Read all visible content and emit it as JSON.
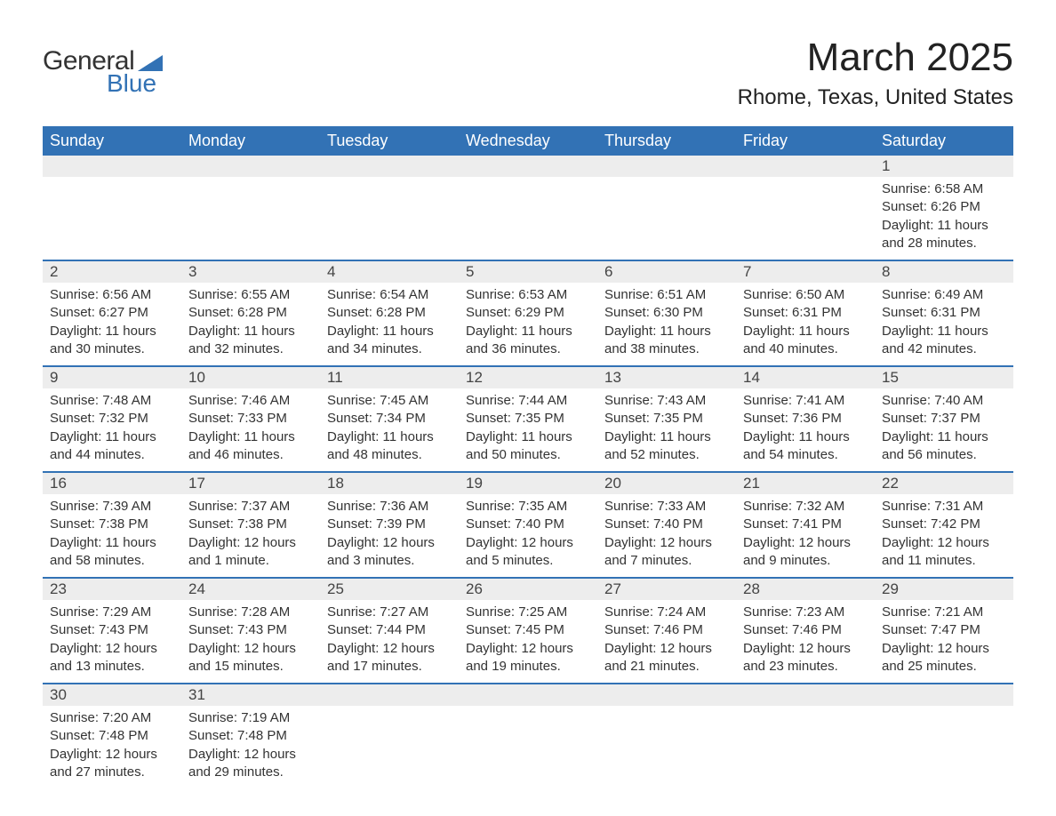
{
  "logo": {
    "text_general": "General",
    "text_blue": "Blue",
    "accent_color": "#3272b5"
  },
  "title": {
    "month": "March 2025",
    "location": "Rhome, Texas, United States"
  },
  "colors": {
    "header_bg": "#3272b5",
    "header_text": "#ffffff",
    "daynum_bg": "#ededed",
    "row_border": "#3272b5",
    "body_text": "#333333",
    "page_bg": "#ffffff"
  },
  "layout": {
    "columns": 7,
    "weeks": 6
  },
  "weekdays": [
    "Sunday",
    "Monday",
    "Tuesday",
    "Wednesday",
    "Thursday",
    "Friday",
    "Saturday"
  ],
  "days": [
    null,
    null,
    null,
    null,
    null,
    null,
    {
      "n": "1",
      "sunrise": "Sunrise: 6:58 AM",
      "sunset": "Sunset: 6:26 PM",
      "day1": "Daylight: 11 hours",
      "day2": "and 28 minutes."
    },
    {
      "n": "2",
      "sunrise": "Sunrise: 6:56 AM",
      "sunset": "Sunset: 6:27 PM",
      "day1": "Daylight: 11 hours",
      "day2": "and 30 minutes."
    },
    {
      "n": "3",
      "sunrise": "Sunrise: 6:55 AM",
      "sunset": "Sunset: 6:28 PM",
      "day1": "Daylight: 11 hours",
      "day2": "and 32 minutes."
    },
    {
      "n": "4",
      "sunrise": "Sunrise: 6:54 AM",
      "sunset": "Sunset: 6:28 PM",
      "day1": "Daylight: 11 hours",
      "day2": "and 34 minutes."
    },
    {
      "n": "5",
      "sunrise": "Sunrise: 6:53 AM",
      "sunset": "Sunset: 6:29 PM",
      "day1": "Daylight: 11 hours",
      "day2": "and 36 minutes."
    },
    {
      "n": "6",
      "sunrise": "Sunrise: 6:51 AM",
      "sunset": "Sunset: 6:30 PM",
      "day1": "Daylight: 11 hours",
      "day2": "and 38 minutes."
    },
    {
      "n": "7",
      "sunrise": "Sunrise: 6:50 AM",
      "sunset": "Sunset: 6:31 PM",
      "day1": "Daylight: 11 hours",
      "day2": "and 40 minutes."
    },
    {
      "n": "8",
      "sunrise": "Sunrise: 6:49 AM",
      "sunset": "Sunset: 6:31 PM",
      "day1": "Daylight: 11 hours",
      "day2": "and 42 minutes."
    },
    {
      "n": "9",
      "sunrise": "Sunrise: 7:48 AM",
      "sunset": "Sunset: 7:32 PM",
      "day1": "Daylight: 11 hours",
      "day2": "and 44 minutes."
    },
    {
      "n": "10",
      "sunrise": "Sunrise: 7:46 AM",
      "sunset": "Sunset: 7:33 PM",
      "day1": "Daylight: 11 hours",
      "day2": "and 46 minutes."
    },
    {
      "n": "11",
      "sunrise": "Sunrise: 7:45 AM",
      "sunset": "Sunset: 7:34 PM",
      "day1": "Daylight: 11 hours",
      "day2": "and 48 minutes."
    },
    {
      "n": "12",
      "sunrise": "Sunrise: 7:44 AM",
      "sunset": "Sunset: 7:35 PM",
      "day1": "Daylight: 11 hours",
      "day2": "and 50 minutes."
    },
    {
      "n": "13",
      "sunrise": "Sunrise: 7:43 AM",
      "sunset": "Sunset: 7:35 PM",
      "day1": "Daylight: 11 hours",
      "day2": "and 52 minutes."
    },
    {
      "n": "14",
      "sunrise": "Sunrise: 7:41 AM",
      "sunset": "Sunset: 7:36 PM",
      "day1": "Daylight: 11 hours",
      "day2": "and 54 minutes."
    },
    {
      "n": "15",
      "sunrise": "Sunrise: 7:40 AM",
      "sunset": "Sunset: 7:37 PM",
      "day1": "Daylight: 11 hours",
      "day2": "and 56 minutes."
    },
    {
      "n": "16",
      "sunrise": "Sunrise: 7:39 AM",
      "sunset": "Sunset: 7:38 PM",
      "day1": "Daylight: 11 hours",
      "day2": "and 58 minutes."
    },
    {
      "n": "17",
      "sunrise": "Sunrise: 7:37 AM",
      "sunset": "Sunset: 7:38 PM",
      "day1": "Daylight: 12 hours",
      "day2": "and 1 minute."
    },
    {
      "n": "18",
      "sunrise": "Sunrise: 7:36 AM",
      "sunset": "Sunset: 7:39 PM",
      "day1": "Daylight: 12 hours",
      "day2": "and 3 minutes."
    },
    {
      "n": "19",
      "sunrise": "Sunrise: 7:35 AM",
      "sunset": "Sunset: 7:40 PM",
      "day1": "Daylight: 12 hours",
      "day2": "and 5 minutes."
    },
    {
      "n": "20",
      "sunrise": "Sunrise: 7:33 AM",
      "sunset": "Sunset: 7:40 PM",
      "day1": "Daylight: 12 hours",
      "day2": "and 7 minutes."
    },
    {
      "n": "21",
      "sunrise": "Sunrise: 7:32 AM",
      "sunset": "Sunset: 7:41 PM",
      "day1": "Daylight: 12 hours",
      "day2": "and 9 minutes."
    },
    {
      "n": "22",
      "sunrise": "Sunrise: 7:31 AM",
      "sunset": "Sunset: 7:42 PM",
      "day1": "Daylight: 12 hours",
      "day2": "and 11 minutes."
    },
    {
      "n": "23",
      "sunrise": "Sunrise: 7:29 AM",
      "sunset": "Sunset: 7:43 PM",
      "day1": "Daylight: 12 hours",
      "day2": "and 13 minutes."
    },
    {
      "n": "24",
      "sunrise": "Sunrise: 7:28 AM",
      "sunset": "Sunset: 7:43 PM",
      "day1": "Daylight: 12 hours",
      "day2": "and 15 minutes."
    },
    {
      "n": "25",
      "sunrise": "Sunrise: 7:27 AM",
      "sunset": "Sunset: 7:44 PM",
      "day1": "Daylight: 12 hours",
      "day2": "and 17 minutes."
    },
    {
      "n": "26",
      "sunrise": "Sunrise: 7:25 AM",
      "sunset": "Sunset: 7:45 PM",
      "day1": "Daylight: 12 hours",
      "day2": "and 19 minutes."
    },
    {
      "n": "27",
      "sunrise": "Sunrise: 7:24 AM",
      "sunset": "Sunset: 7:46 PM",
      "day1": "Daylight: 12 hours",
      "day2": "and 21 minutes."
    },
    {
      "n": "28",
      "sunrise": "Sunrise: 7:23 AM",
      "sunset": "Sunset: 7:46 PM",
      "day1": "Daylight: 12 hours",
      "day2": "and 23 minutes."
    },
    {
      "n": "29",
      "sunrise": "Sunrise: 7:21 AM",
      "sunset": "Sunset: 7:47 PM",
      "day1": "Daylight: 12 hours",
      "day2": "and 25 minutes."
    },
    {
      "n": "30",
      "sunrise": "Sunrise: 7:20 AM",
      "sunset": "Sunset: 7:48 PM",
      "day1": "Daylight: 12 hours",
      "day2": "and 27 minutes."
    },
    {
      "n": "31",
      "sunrise": "Sunrise: 7:19 AM",
      "sunset": "Sunset: 7:48 PM",
      "day1": "Daylight: 12 hours",
      "day2": "and 29 minutes."
    },
    null,
    null,
    null,
    null,
    null
  ]
}
